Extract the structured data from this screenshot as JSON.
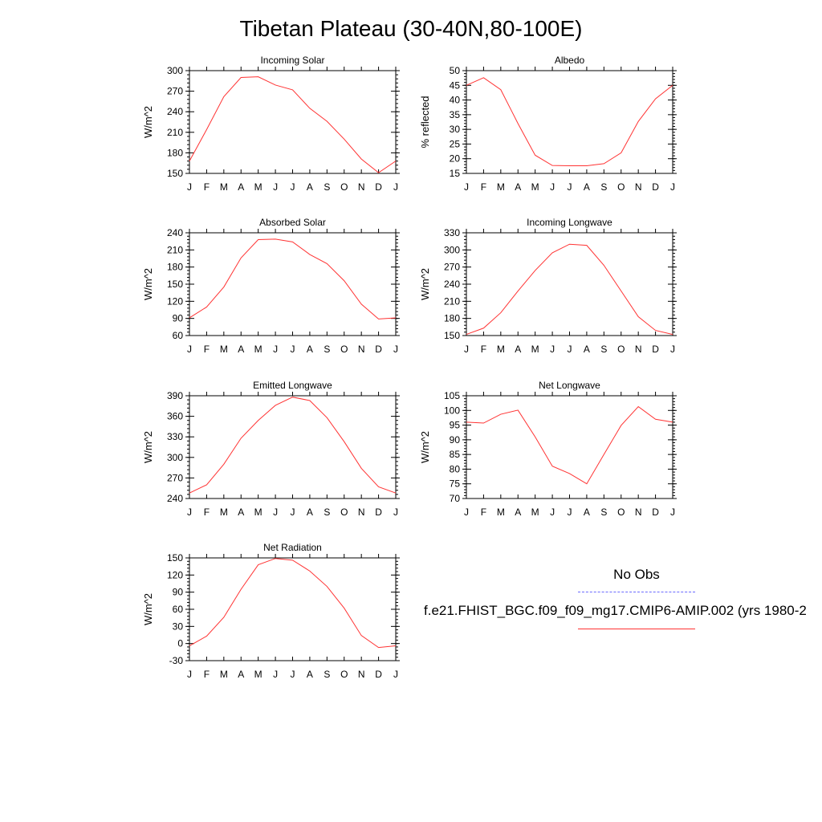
{
  "title": "Tibetan Plateau (30-40N,80-100E)",
  "legend": {
    "obs_label": "No Obs",
    "obs_color": "#6b6bff",
    "model_label": "f.e21.FHIST_BGC.f09_f09_mg17.CMIP6-AMIP.002 (yrs 1980-2",
    "model_color": "#ff3333"
  },
  "months": [
    "J",
    "F",
    "M",
    "A",
    "M",
    "J",
    "J",
    "A",
    "S",
    "O",
    "N",
    "D",
    "J"
  ],
  "chart_data": [
    {
      "type": "line",
      "title": "Incoming Solar",
      "ylabel": "W/m^2",
      "ylim": [
        150,
        300
      ],
      "yticks": [
        150,
        180,
        210,
        240,
        270,
        300
      ],
      "series": [
        {
          "values": [
            168,
            214,
            262,
            290,
            291,
            279,
            272,
            245,
            226,
            200,
            171,
            151,
            168
          ]
        }
      ]
    },
    {
      "type": "line",
      "title": "Albedo",
      "ylabel": "% reflected",
      "ylim": [
        15,
        50
      ],
      "yticks": [
        15,
        20,
        25,
        30,
        35,
        40,
        45,
        50
      ],
      "series": [
        {
          "values": [
            45.0,
            47.6,
            43.5,
            32.0,
            21.2,
            17.7,
            17.6,
            17.6,
            18.3,
            22.0,
            32.7,
            40.4,
            45.0
          ]
        }
      ]
    },
    {
      "type": "line",
      "title": "Absorbed Solar",
      "ylabel": "W/m^2",
      "ylim": [
        60,
        240
      ],
      "yticks": [
        60,
        90,
        120,
        150,
        180,
        210,
        240
      ],
      "series": [
        {
          "values": [
            91,
            110,
            145,
            196,
            228,
            229,
            224,
            202,
            186,
            156,
            115,
            89,
            91
          ]
        }
      ]
    },
    {
      "type": "line",
      "title": "Incoming Longwave",
      "ylabel": "W/m^2",
      "ylim": [
        150,
        330
      ],
      "yticks": [
        150,
        180,
        210,
        240,
        270,
        300,
        330
      ],
      "series": [
        {
          "values": [
            152,
            163,
            190,
            228,
            264,
            295,
            310,
            308,
            273,
            228,
            183,
            159,
            152
          ]
        }
      ]
    },
    {
      "type": "line",
      "title": "Emitted Longwave",
      "ylabel": "W/m^2",
      "ylim": [
        240,
        390
      ],
      "yticks": [
        240,
        270,
        300,
        330,
        360,
        390
      ],
      "series": [
        {
          "values": [
            248,
            260,
            290,
            328,
            354,
            376,
            388,
            383,
            358,
            323,
            284,
            257,
            248
          ]
        }
      ]
    },
    {
      "type": "line",
      "title": "Net Longwave",
      "ylabel": "W/m^2",
      "ylim": [
        70,
        105
      ],
      "yticks": [
        70,
        75,
        80,
        85,
        90,
        95,
        100,
        105
      ],
      "series": [
        {
          "values": [
            96.0,
            95.7,
            98.7,
            100.1,
            91.0,
            81.0,
            78.5,
            75.0,
            85.0,
            94.9,
            101.3,
            97.0,
            96.0
          ]
        }
      ]
    },
    {
      "type": "line",
      "title": "Net Radiation",
      "ylabel": "W/m^2",
      "ylim": [
        -30,
        150
      ],
      "yticks": [
        -30,
        0,
        30,
        60,
        90,
        120,
        150
      ],
      "series": [
        {
          "values": [
            -4,
            13,
            46,
            95,
            138,
            149,
            146,
            127,
            100,
            62,
            14,
            -7,
            -4
          ]
        }
      ]
    }
  ]
}
